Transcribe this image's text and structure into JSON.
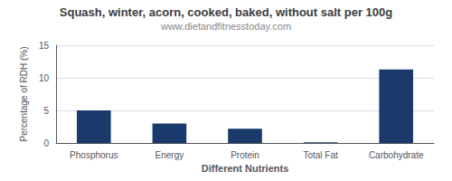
{
  "chart_data": {
    "type": "bar",
    "title": "Squash, winter, acorn, cooked, baked, without salt per 100g",
    "subtitle": "www.dietandfitnesstoday.com",
    "xlabel": "Different Nutrients",
    "ylabel": "Percentage of RDH (%)",
    "categories": [
      "Phosphorus",
      "Energy",
      "Protein",
      "Total Fat",
      "Carbohydrate"
    ],
    "values": [
      5.0,
      3.0,
      2.2,
      0.1,
      11.3
    ],
    "color": "#1a3a6b",
    "ylim": [
      0,
      15
    ],
    "yticks": [
      0,
      5,
      10,
      15
    ],
    "grid": true
  }
}
